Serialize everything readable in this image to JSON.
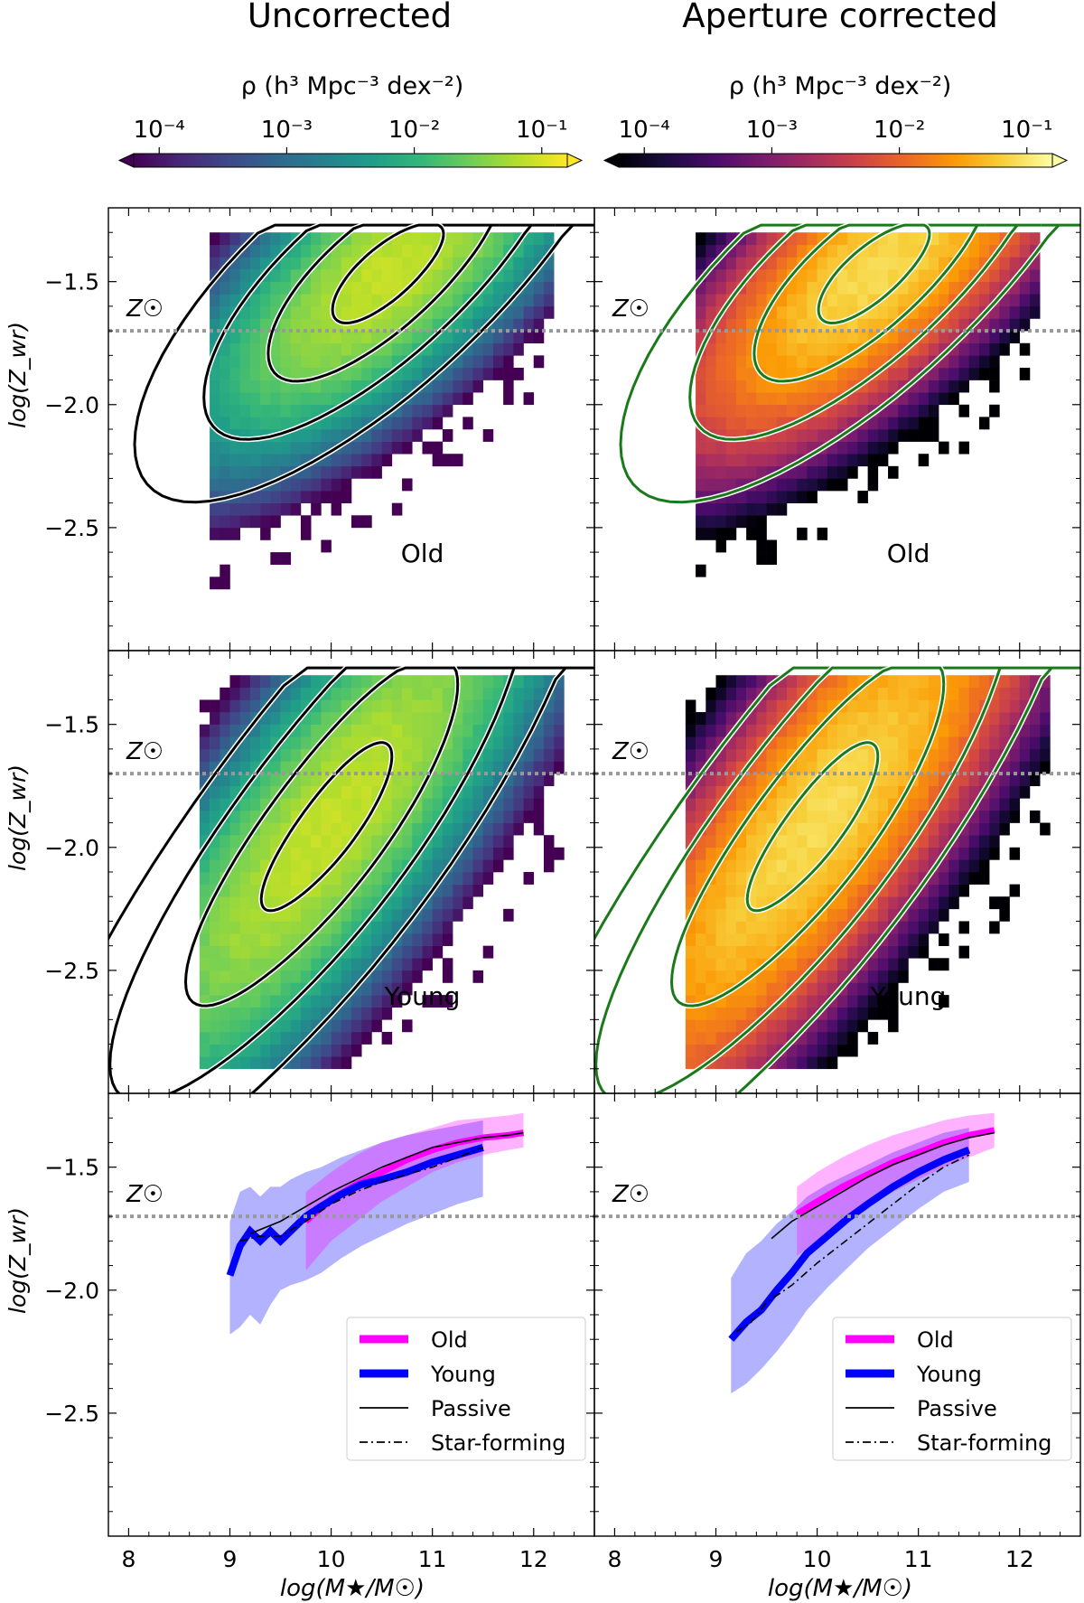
{
  "colors": {
    "viridis": [
      "#440154",
      "#482878",
      "#3e4989",
      "#31688e",
      "#26828e",
      "#1f9e89",
      "#35b779",
      "#6ece58",
      "#b5de2b",
      "#fde725"
    ],
    "inferno": [
      "#000004",
      "#1b0c41",
      "#4a0c6b",
      "#781c6d",
      "#a52c60",
      "#cf4446",
      "#ed6925",
      "#fb9b06",
      "#f7d13d",
      "#fcffa4"
    ],
    "old_band": "#ff00ff",
    "young_band": "#0000ff",
    "solar_line": "#999999",
    "uncorrected_contour": "#000000",
    "corrected_contour": "#1a7a1a"
  },
  "chart_data": {
    "type": "heatmap",
    "columns": [
      {
        "title": "Uncorrected",
        "colorbar_label": "ρ (h³ Mpc⁻³ dex⁻²)",
        "colormap": "viridis",
        "contour_color": "black"
      },
      {
        "title": "Aperture corrected",
        "colorbar_label": "ρ (h³ Mpc⁻³ dex⁻²)",
        "colormap": "inferno",
        "contour_color": "green"
      }
    ],
    "colorbar": {
      "ticks": [
        "10⁻⁴",
        "10⁻³",
        "10⁻²",
        "10⁻¹"
      ],
      "log_range": [
        -4.2,
        -0.8
      ]
    },
    "xlabel": "log(M★/M☉)",
    "ylabel": "log(Z_wr)",
    "xlim": [
      7.8,
      12.6
    ],
    "ylim": [
      -3.0,
      -1.2
    ],
    "xticks": [
      "8",
      "9",
      "10",
      "11",
      "12"
    ],
    "yticks": [
      "−1.5",
      "−2.0",
      "−2.5"
    ],
    "solar_label": "Z☉",
    "solar_value": -1.7,
    "panels": [
      {
        "row": 0,
        "col": 0,
        "kind": "density",
        "label": "Old"
      },
      {
        "row": 0,
        "col": 1,
        "kind": "density",
        "label": "Old"
      },
      {
        "row": 1,
        "col": 0,
        "kind": "density",
        "label": "Young"
      },
      {
        "row": 1,
        "col": 1,
        "kind": "density",
        "label": "Young"
      },
      {
        "row": 2,
        "col": 0,
        "kind": "relation"
      },
      {
        "row": 2,
        "col": 1,
        "kind": "relation"
      }
    ],
    "density_shapes": {
      "old": {
        "peak_x": 10.6,
        "peak_y": -1.45,
        "slope": 0.28,
        "sx": 0.85,
        "sy": 0.22,
        "xmin": 8.8,
        "xmax": 12.1
      },
      "young": {
        "peak_x": 10.0,
        "peak_y": -1.9,
        "slope": 0.45,
        "sx": 1.0,
        "sy": 0.3,
        "xmin": 8.7,
        "xmax": 12.2
      }
    },
    "relations": [
      {
        "old": {
          "x": [
            9.75,
            10.0,
            10.25,
            10.5,
            10.75,
            11.0,
            11.25,
            11.5,
            11.75,
            11.9
          ],
          "y": [
            -1.72,
            -1.63,
            -1.57,
            -1.52,
            -1.47,
            -1.43,
            -1.4,
            -1.38,
            -1.37,
            -1.36
          ],
          "lo": [
            -1.92,
            -1.8,
            -1.72,
            -1.64,
            -1.58,
            -1.52,
            -1.48,
            -1.45,
            -1.43,
            -1.42
          ],
          "hi": [
            -1.6,
            -1.52,
            -1.45,
            -1.4,
            -1.37,
            -1.34,
            -1.31,
            -1.3,
            -1.29,
            -1.28
          ]
        },
        "young": {
          "x": [
            9.0,
            9.1,
            9.2,
            9.3,
            9.4,
            9.5,
            9.6,
            9.75,
            9.9,
            10.1,
            10.3,
            10.5,
            10.75,
            11.0,
            11.25,
            11.5
          ],
          "y": [
            -1.94,
            -1.82,
            -1.76,
            -1.8,
            -1.76,
            -1.8,
            -1.76,
            -1.7,
            -1.66,
            -1.61,
            -1.57,
            -1.55,
            -1.52,
            -1.48,
            -1.45,
            -1.42
          ],
          "lo": [
            -2.18,
            -2.15,
            -2.1,
            -2.14,
            -2.06,
            -2.0,
            -1.98,
            -1.96,
            -1.93,
            -1.87,
            -1.82,
            -1.78,
            -1.73,
            -1.69,
            -1.65,
            -1.62
          ],
          "hi": [
            -1.72,
            -1.6,
            -1.58,
            -1.62,
            -1.58,
            -1.58,
            -1.55,
            -1.52,
            -1.5,
            -1.46,
            -1.43,
            -1.4,
            -1.37,
            -1.35,
            -1.33,
            -1.31
          ]
        },
        "passive": {
          "x": [
            9.2,
            9.5,
            9.75,
            10.0,
            10.25,
            10.5,
            10.75,
            11.0,
            11.25,
            11.5,
            11.75,
            11.9
          ],
          "y": [
            -1.77,
            -1.72,
            -1.66,
            -1.6,
            -1.55,
            -1.5,
            -1.46,
            -1.42,
            -1.4,
            -1.38,
            -1.37,
            -1.36
          ]
        },
        "starforming": {
          "x": [
            9.1,
            9.3,
            9.5,
            9.75,
            10.0,
            10.25,
            10.5,
            10.75,
            11.0,
            11.25,
            11.5
          ],
          "y": [
            -1.8,
            -1.78,
            -1.78,
            -1.72,
            -1.65,
            -1.6,
            -1.56,
            -1.53,
            -1.5,
            -1.46,
            -1.42
          ]
        }
      },
      {
        "old": {
          "x": [
            9.8,
            10.0,
            10.25,
            10.5,
            10.75,
            11.0,
            11.25,
            11.5,
            11.75
          ],
          "y": [
            -1.69,
            -1.64,
            -1.58,
            -1.53,
            -1.48,
            -1.44,
            -1.4,
            -1.37,
            -1.35
          ],
          "lo": [
            -1.86,
            -1.8,
            -1.73,
            -1.66,
            -1.6,
            -1.55,
            -1.5,
            -1.46,
            -1.42
          ],
          "hi": [
            -1.58,
            -1.52,
            -1.46,
            -1.41,
            -1.37,
            -1.34,
            -1.31,
            -1.29,
            -1.28
          ]
        },
        "young": {
          "x": [
            9.15,
            9.3,
            9.45,
            9.6,
            9.75,
            9.9,
            10.1,
            10.3,
            10.5,
            10.75,
            11.0,
            11.25,
            11.5
          ],
          "y": [
            -2.2,
            -2.13,
            -2.08,
            -2.0,
            -1.93,
            -1.85,
            -1.78,
            -1.71,
            -1.65,
            -1.58,
            -1.52,
            -1.47,
            -1.43
          ],
          "lo": [
            -2.42,
            -2.38,
            -2.32,
            -2.25,
            -2.17,
            -2.08,
            -1.99,
            -1.91,
            -1.83,
            -1.75,
            -1.67,
            -1.6,
            -1.56
          ],
          "hi": [
            -1.95,
            -1.85,
            -1.8,
            -1.73,
            -1.68,
            -1.62,
            -1.57,
            -1.53,
            -1.49,
            -1.44,
            -1.4,
            -1.36,
            -1.34
          ]
        },
        "passive": {
          "x": [
            9.55,
            9.75,
            10.0,
            10.25,
            10.5,
            10.75,
            11.0,
            11.25,
            11.5,
            11.75
          ],
          "y": [
            -1.79,
            -1.72,
            -1.66,
            -1.6,
            -1.54,
            -1.49,
            -1.45,
            -1.41,
            -1.38,
            -1.36
          ]
        },
        "starforming": {
          "x": [
            9.2,
            9.35,
            9.5,
            9.75,
            10.0,
            10.25,
            10.5,
            10.75,
            11.0,
            11.25,
            11.5
          ],
          "y": [
            -2.17,
            -2.13,
            -2.05,
            -1.98,
            -1.89,
            -1.81,
            -1.73,
            -1.65,
            -1.57,
            -1.5,
            -1.45
          ]
        }
      }
    ],
    "legend": {
      "position": "lower-right",
      "entries": [
        {
          "label": "Old",
          "style": "band-magenta"
        },
        {
          "label": "Young",
          "style": "band-blue"
        },
        {
          "label": "Passive",
          "style": "solid"
        },
        {
          "label": "Star-forming",
          "style": "dashdot"
        }
      ]
    }
  }
}
